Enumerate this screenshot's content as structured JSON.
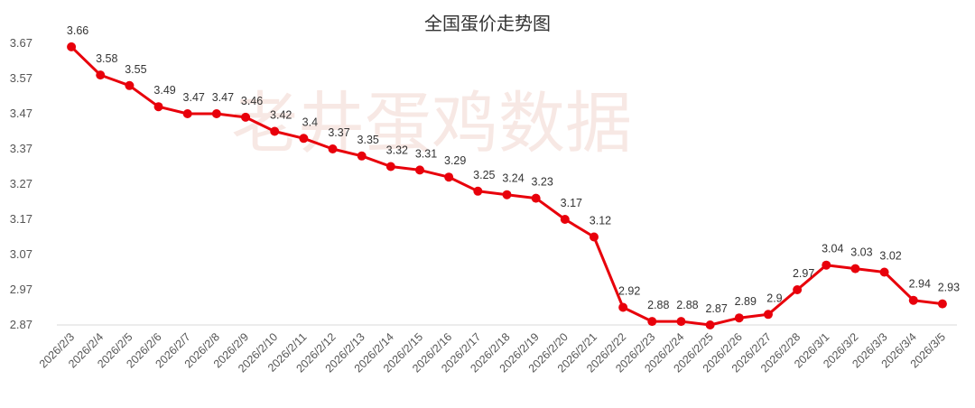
{
  "chart_data": {
    "type": "line",
    "title": "全国蛋价走势图",
    "watermark": "老井蛋鸡数据",
    "xlabel": "",
    "ylabel": "",
    "ylim": [
      2.87,
      3.67
    ],
    "yticks": [
      "3.67",
      "3.57",
      "3.47",
      "3.37",
      "3.27",
      "3.17",
      "3.07",
      "2.97",
      "2.87"
    ],
    "grid": false,
    "legend": "none",
    "line_color": "#e8000b",
    "categories": [
      "2026/2/3",
      "2026/2/4",
      "2026/2/5",
      "2026/2/6",
      "2026/2/7",
      "2026/2/8",
      "2026/2/9",
      "2026/2/10",
      "2026/2/11",
      "2026/2/12",
      "2026/2/13",
      "2026/2/14",
      "2026/2/15",
      "2026/2/16",
      "2026/2/17",
      "2026/2/18",
      "2026/2/19",
      "2026/2/20",
      "2026/2/21",
      "2026/2/22",
      "2026/2/23",
      "2026/2/24",
      "2026/2/25",
      "2026/2/26",
      "2026/2/27",
      "2026/2/28",
      "2026/3/1",
      "2026/3/2",
      "2026/3/3",
      "2026/3/4",
      "2026/3/5"
    ],
    "values": [
      3.66,
      3.58,
      3.55,
      3.49,
      3.47,
      3.47,
      3.46,
      3.42,
      3.4,
      3.37,
      3.35,
      3.32,
      3.31,
      3.29,
      3.25,
      3.24,
      3.23,
      3.17,
      3.12,
      2.92,
      2.88,
      2.88,
      2.87,
      2.89,
      2.9,
      2.97,
      3.04,
      3.03,
      3.02,
      2.94,
      2.93
    ],
    "labels": [
      "3.66",
      "3.58",
      "3.55",
      "3.49",
      "3.47",
      "3.47",
      "3.46",
      "3.42",
      "3.4",
      "3.37",
      "3.35",
      "3.32",
      "3.31",
      "3.29",
      "3.25",
      "3.24",
      "3.23",
      "3.17",
      "3.12",
      "2.92",
      "2.88",
      "2.88",
      "2.87",
      "2.89",
      "2.9",
      "2.97",
      "3.04",
      "3.03",
      "3.02",
      "2.94",
      "2.93"
    ]
  }
}
